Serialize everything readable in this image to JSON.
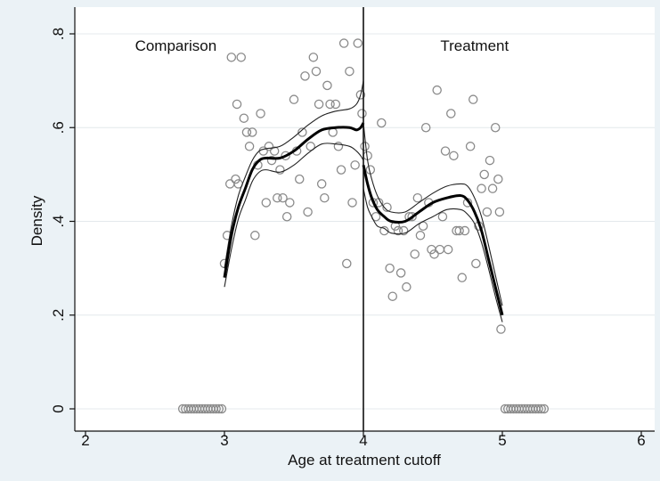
{
  "chart_data": {
    "type": "scatter",
    "title": "",
    "xlabel": "Age at treatment cutoff",
    "ylabel": "Density",
    "xlim": [
      2,
      6
    ],
    "ylim": [
      0,
      0.8
    ],
    "x_ticks": [
      2,
      3,
      4,
      5,
      6
    ],
    "x_tick_labels": [
      "2",
      "3",
      "4",
      "5",
      "6"
    ],
    "y_ticks": [
      0,
      0.2,
      0.4,
      0.6,
      0.8
    ],
    "y_tick_labels": [
      "0",
      ".2",
      ".4",
      ".6",
      ".8"
    ],
    "grid": "horizontal",
    "cutoff_x": 4,
    "annotations": [
      {
        "text": "Comparison",
        "x": 2.65,
        "y": 0.775
      },
      {
        "text": "Treatment",
        "x": 4.8,
        "y": 0.775
      }
    ],
    "scatter": {
      "marker": "hollow-circle",
      "color": "#8a8a8a",
      "points": [
        [
          3.0,
          0.31
        ],
        [
          3.02,
          0.37
        ],
        [
          3.04,
          0.48
        ],
        [
          3.05,
          0.75
        ],
        [
          3.08,
          0.49
        ],
        [
          3.09,
          0.65
        ],
        [
          3.1,
          0.48
        ],
        [
          3.12,
          0.75
        ],
        [
          3.14,
          0.62
        ],
        [
          3.16,
          0.59
        ],
        [
          3.18,
          0.56
        ],
        [
          3.2,
          0.59
        ],
        [
          3.22,
          0.37
        ],
        [
          3.24,
          0.52
        ],
        [
          3.26,
          0.63
        ],
        [
          3.28,
          0.55
        ],
        [
          3.3,
          0.44
        ],
        [
          3.32,
          0.56
        ],
        [
          3.34,
          0.53
        ],
        [
          3.36,
          0.55
        ],
        [
          3.38,
          0.45
        ],
        [
          3.4,
          0.51
        ],
        [
          3.42,
          0.45
        ],
        [
          3.44,
          0.54
        ],
        [
          3.45,
          0.41
        ],
        [
          3.47,
          0.44
        ],
        [
          3.5,
          0.66
        ],
        [
          3.52,
          0.55
        ],
        [
          3.54,
          0.49
        ],
        [
          3.56,
          0.59
        ],
        [
          3.58,
          0.71
        ],
        [
          3.6,
          0.42
        ],
        [
          3.62,
          0.56
        ],
        [
          3.64,
          0.75
        ],
        [
          3.66,
          0.72
        ],
        [
          3.68,
          0.65
        ],
        [
          3.7,
          0.48
        ],
        [
          3.72,
          0.45
        ],
        [
          3.74,
          0.69
        ],
        [
          3.76,
          0.65
        ],
        [
          3.78,
          0.59
        ],
        [
          3.8,
          0.65
        ],
        [
          3.82,
          0.56
        ],
        [
          3.84,
          0.51
        ],
        [
          3.86,
          0.78
        ],
        [
          3.88,
          0.31
        ],
        [
          3.9,
          0.72
        ],
        [
          3.92,
          0.44
        ],
        [
          3.94,
          0.52
        ],
        [
          3.96,
          0.78
        ],
        [
          3.98,
          0.67
        ],
        [
          3.99,
          0.63
        ],
        [
          4.01,
          0.56
        ],
        [
          4.03,
          0.54
        ],
        [
          4.05,
          0.51
        ],
        [
          4.07,
          0.44
        ],
        [
          4.09,
          0.41
        ],
        [
          4.11,
          0.44
        ],
        [
          4.13,
          0.61
        ],
        [
          4.15,
          0.38
        ],
        [
          4.17,
          0.43
        ],
        [
          4.19,
          0.3
        ],
        [
          4.21,
          0.24
        ],
        [
          4.23,
          0.39
        ],
        [
          4.25,
          0.38
        ],
        [
          4.27,
          0.29
        ],
        [
          4.29,
          0.38
        ],
        [
          4.31,
          0.26
        ],
        [
          4.33,
          0.41
        ],
        [
          4.35,
          0.41
        ],
        [
          4.37,
          0.33
        ],
        [
          4.39,
          0.45
        ],
        [
          4.41,
          0.37
        ],
        [
          4.43,
          0.39
        ],
        [
          4.45,
          0.6
        ],
        [
          4.47,
          0.44
        ],
        [
          4.49,
          0.34
        ],
        [
          4.51,
          0.33
        ],
        [
          4.53,
          0.68
        ],
        [
          4.55,
          0.34
        ],
        [
          4.57,
          0.41
        ],
        [
          4.59,
          0.55
        ],
        [
          4.61,
          0.34
        ],
        [
          4.63,
          0.63
        ],
        [
          4.65,
          0.54
        ],
        [
          4.67,
          0.38
        ],
        [
          4.69,
          0.38
        ],
        [
          4.71,
          0.28
        ],
        [
          4.73,
          0.38
        ],
        [
          4.75,
          0.44
        ],
        [
          4.77,
          0.56
        ],
        [
          4.79,
          0.66
        ],
        [
          4.81,
          0.31
        ],
        [
          4.83,
          0.39
        ],
        [
          4.85,
          0.47
        ],
        [
          4.87,
          0.5
        ],
        [
          4.89,
          0.42
        ],
        [
          4.91,
          0.53
        ],
        [
          4.93,
          0.47
        ],
        [
          4.95,
          0.6
        ],
        [
          4.97,
          0.49
        ],
        [
          4.98,
          0.42
        ],
        [
          4.99,
          0.17
        ],
        [
          2.7,
          0
        ],
        [
          2.72,
          0
        ],
        [
          2.74,
          0
        ],
        [
          2.76,
          0
        ],
        [
          2.78,
          0
        ],
        [
          2.8,
          0
        ],
        [
          2.82,
          0
        ],
        [
          2.84,
          0
        ],
        [
          2.86,
          0
        ],
        [
          2.88,
          0
        ],
        [
          2.9,
          0
        ],
        [
          2.92,
          0
        ],
        [
          2.94,
          0
        ],
        [
          2.96,
          0
        ],
        [
          2.98,
          0
        ],
        [
          5.02,
          0
        ],
        [
          5.04,
          0
        ],
        [
          5.06,
          0
        ],
        [
          5.08,
          0
        ],
        [
          5.1,
          0
        ],
        [
          5.12,
          0
        ],
        [
          5.14,
          0
        ],
        [
          5.16,
          0
        ],
        [
          5.18,
          0
        ],
        [
          5.2,
          0
        ],
        [
          5.22,
          0
        ],
        [
          5.24,
          0
        ],
        [
          5.26,
          0
        ],
        [
          5.28,
          0
        ],
        [
          5.3,
          0
        ]
      ]
    },
    "fit_left": {
      "x": [
        3.0,
        3.05,
        3.1,
        3.15,
        3.2,
        3.25,
        3.3,
        3.4,
        3.5,
        3.6,
        3.7,
        3.8,
        3.9,
        3.95,
        3.98,
        4.0
      ],
      "y": [
        0.28,
        0.37,
        0.43,
        0.47,
        0.51,
        0.53,
        0.535,
        0.535,
        0.55,
        0.575,
        0.595,
        0.6,
        0.6,
        0.595,
        0.6,
        0.61
      ],
      "upper": [
        0.3,
        0.39,
        0.455,
        0.495,
        0.53,
        0.55,
        0.555,
        0.56,
        0.58,
        0.605,
        0.625,
        0.635,
        0.64,
        0.65,
        0.67,
        0.7
      ],
      "lower": [
        0.26,
        0.34,
        0.405,
        0.445,
        0.485,
        0.505,
        0.51,
        0.505,
        0.52,
        0.545,
        0.565,
        0.565,
        0.56,
        0.55,
        0.54,
        0.53
      ]
    },
    "fit_right": {
      "x": [
        4.0,
        4.03,
        4.06,
        4.1,
        4.15,
        4.2,
        4.3,
        4.4,
        4.5,
        4.6,
        4.7,
        4.75,
        4.8,
        4.85,
        4.9,
        4.95,
        5.0
      ],
      "y": [
        0.52,
        0.48,
        0.45,
        0.425,
        0.41,
        0.4,
        0.4,
        0.42,
        0.44,
        0.45,
        0.455,
        0.445,
        0.42,
        0.38,
        0.32,
        0.26,
        0.2
      ],
      "upper": [
        0.61,
        0.53,
        0.49,
        0.455,
        0.43,
        0.42,
        0.42,
        0.44,
        0.46,
        0.475,
        0.48,
        0.475,
        0.45,
        0.41,
        0.35,
        0.285,
        0.22
      ],
      "lower": [
        0.47,
        0.43,
        0.41,
        0.39,
        0.385,
        0.375,
        0.375,
        0.395,
        0.41,
        0.425,
        0.425,
        0.415,
        0.395,
        0.355,
        0.3,
        0.24,
        0.185
      ]
    }
  }
}
